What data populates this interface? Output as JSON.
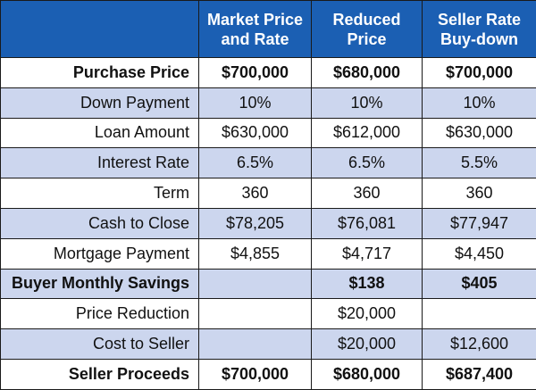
{
  "colors": {
    "header_bg": "#1b5fb3",
    "header_text": "#ffffff",
    "stripe": "#ccd6ee",
    "plain": "#ffffff",
    "border": "#1a1a1a"
  },
  "columns": [
    "",
    "Market Price and Rate",
    "Reduced Price",
    "Seller Rate Buy-down"
  ],
  "rows": [
    {
      "label": "Purchase Price",
      "values": [
        "$700,000",
        "$680,000",
        "$700,000"
      ],
      "bold": true,
      "shaded": false
    },
    {
      "label": "Down Payment",
      "values": [
        "10%",
        "10%",
        "10%"
      ],
      "bold": false,
      "shaded": true
    },
    {
      "label": "Loan Amount",
      "values": [
        "$630,000",
        "$612,000",
        "$630,000"
      ],
      "bold": false,
      "shaded": false
    },
    {
      "label": "Interest Rate",
      "values": [
        "6.5%",
        "6.5%",
        "5.5%"
      ],
      "bold": false,
      "shaded": true
    },
    {
      "label": "Term",
      "values": [
        "360",
        "360",
        "360"
      ],
      "bold": false,
      "shaded": false
    },
    {
      "label": "Cash to Close",
      "values": [
        "$78,205",
        "$76,081",
        "$77,947"
      ],
      "bold": false,
      "shaded": true
    },
    {
      "label": "Mortgage Payment",
      "values": [
        "$4,855",
        "$4,717",
        "$4,450"
      ],
      "bold": false,
      "shaded": false
    },
    {
      "label": "Buyer Monthly Savings",
      "values": [
        "",
        "$138",
        "$405"
      ],
      "bold": true,
      "shaded": true
    },
    {
      "label": "Price Reduction",
      "values": [
        "",
        "$20,000",
        ""
      ],
      "bold": false,
      "shaded": false
    },
    {
      "label": "Cost to Seller",
      "values": [
        "",
        "$20,000",
        "$12,600"
      ],
      "bold": false,
      "shaded": true
    },
    {
      "label": "Seller Proceeds",
      "values": [
        "$700,000",
        "$680,000",
        "$687,400"
      ],
      "bold": true,
      "shaded": false
    }
  ]
}
